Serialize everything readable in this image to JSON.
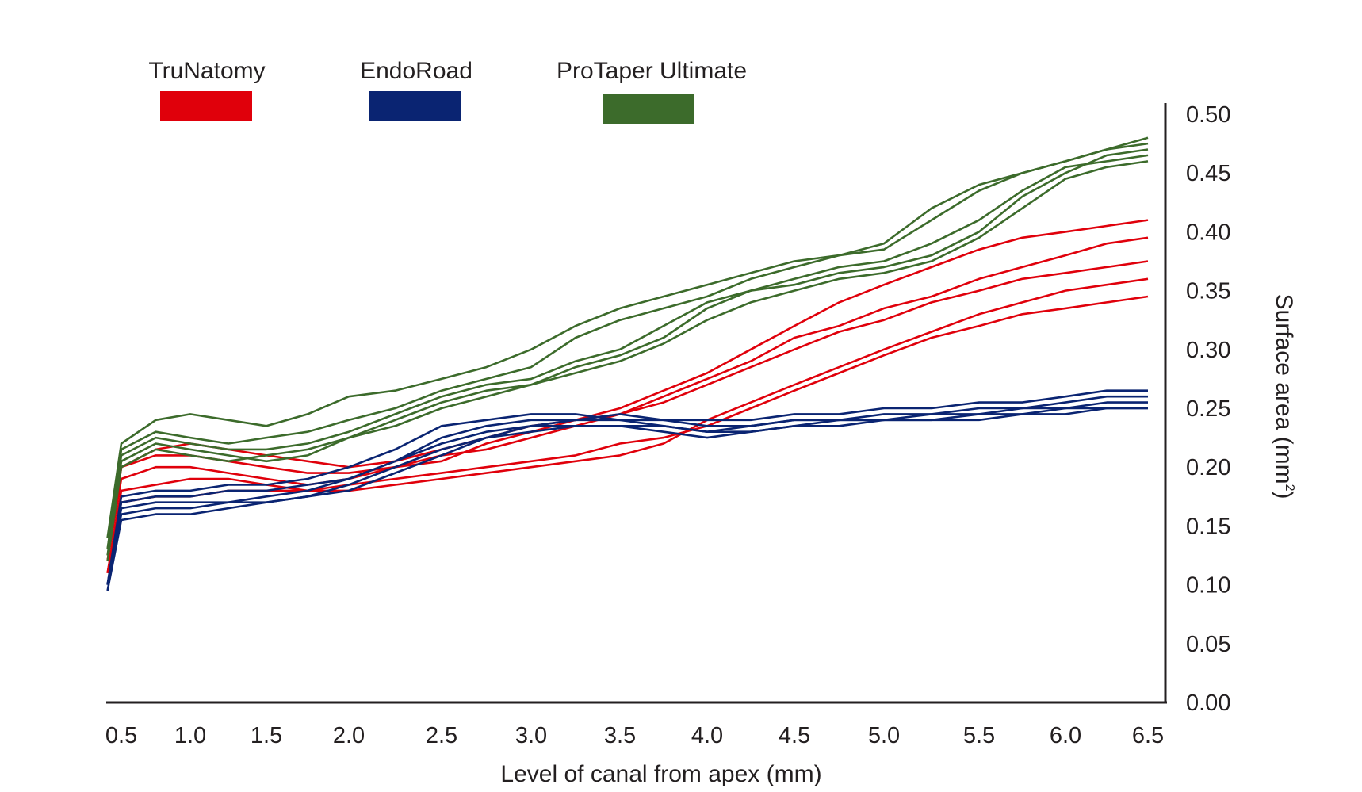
{
  "chart_data": {
    "type": "line",
    "title": "",
    "xlabel": "Level of canal from apex (mm)",
    "ylabel": "Surface area (mm",
    "ylabel_superscript": "2",
    "ylabel_close": ")",
    "xticks": [
      "0.5",
      "1.0",
      "1.5",
      "2.0",
      "2.5",
      "3.0",
      "3.5",
      "4.0",
      "4.5",
      "5.0",
      "5.5",
      "6.0",
      "6.5"
    ],
    "yticks": [
      "0.00",
      "0.05",
      "0.10",
      "0.15",
      "0.20",
      "0.25",
      "0.30",
      "0.35",
      "0.40",
      "0.45",
      "0.50"
    ],
    "xlim": [
      0.4,
      6.5
    ],
    "ylim": [
      0,
      0.5
    ],
    "y_axis_side": "right",
    "grid": false,
    "legend_placement": "top-left",
    "x": [
      0.4,
      0.5,
      0.75,
      1.0,
      1.25,
      1.5,
      1.75,
      2.0,
      2.25,
      2.5,
      2.75,
      3.0,
      3.25,
      3.5,
      3.75,
      4.0,
      4.25,
      4.5,
      4.75,
      5.0,
      5.25,
      5.5,
      5.75,
      6.0,
      6.25,
      6.5
    ],
    "groups": [
      {
        "name": "TruNatomy",
        "color": "#e0000b",
        "lines": [
          [
            0.12,
            0.2,
            0.215,
            0.22,
            0.215,
            0.21,
            0.205,
            0.2,
            0.205,
            0.215,
            0.225,
            0.235,
            0.24,
            0.25,
            0.265,
            0.28,
            0.3,
            0.32,
            0.34,
            0.355,
            0.37,
            0.385,
            0.395,
            0.4,
            0.405,
            0.41
          ],
          [
            0.11,
            0.18,
            0.185,
            0.19,
            0.19,
            0.185,
            0.18,
            0.18,
            0.185,
            0.19,
            0.195,
            0.2,
            0.205,
            0.21,
            0.22,
            0.24,
            0.255,
            0.27,
            0.285,
            0.3,
            0.315,
            0.33,
            0.34,
            0.35,
            0.355,
            0.36
          ],
          [
            0.12,
            0.19,
            0.2,
            0.2,
            0.195,
            0.19,
            0.185,
            0.19,
            0.2,
            0.21,
            0.215,
            0.225,
            0.235,
            0.245,
            0.26,
            0.275,
            0.29,
            0.31,
            0.32,
            0.335,
            0.345,
            0.36,
            0.37,
            0.38,
            0.39,
            0.395
          ],
          [
            0.11,
            0.17,
            0.175,
            0.175,
            0.18,
            0.18,
            0.18,
            0.185,
            0.19,
            0.195,
            0.2,
            0.205,
            0.21,
            0.22,
            0.225,
            0.235,
            0.25,
            0.265,
            0.28,
            0.295,
            0.31,
            0.32,
            0.33,
            0.335,
            0.34,
            0.345
          ],
          [
            0.12,
            0.2,
            0.21,
            0.21,
            0.205,
            0.2,
            0.195,
            0.195,
            0.2,
            0.205,
            0.22,
            0.23,
            0.24,
            0.245,
            0.255,
            0.27,
            0.285,
            0.3,
            0.315,
            0.325,
            0.34,
            0.35,
            0.36,
            0.365,
            0.37,
            0.375
          ]
        ]
      },
      {
        "name": "ProTaper Ultimate",
        "color": "#3c6b2b",
        "lines": [
          [
            0.14,
            0.22,
            0.24,
            0.245,
            0.24,
            0.235,
            0.245,
            0.26,
            0.265,
            0.275,
            0.285,
            0.3,
            0.32,
            0.335,
            0.345,
            0.355,
            0.365,
            0.375,
            0.38,
            0.39,
            0.42,
            0.44,
            0.45,
            0.46,
            0.47,
            0.48
          ],
          [
            0.13,
            0.21,
            0.225,
            0.22,
            0.215,
            0.215,
            0.22,
            0.23,
            0.245,
            0.26,
            0.27,
            0.275,
            0.29,
            0.3,
            0.32,
            0.34,
            0.35,
            0.36,
            0.37,
            0.375,
            0.39,
            0.41,
            0.435,
            0.455,
            0.46,
            0.465
          ],
          [
            0.12,
            0.2,
            0.215,
            0.21,
            0.205,
            0.21,
            0.215,
            0.225,
            0.24,
            0.255,
            0.265,
            0.27,
            0.285,
            0.295,
            0.31,
            0.335,
            0.35,
            0.355,
            0.365,
            0.37,
            0.38,
            0.4,
            0.43,
            0.45,
            0.465,
            0.47
          ],
          [
            0.13,
            0.215,
            0.23,
            0.225,
            0.22,
            0.225,
            0.23,
            0.24,
            0.25,
            0.265,
            0.275,
            0.285,
            0.31,
            0.325,
            0.335,
            0.345,
            0.36,
            0.37,
            0.38,
            0.385,
            0.41,
            0.435,
            0.45,
            0.46,
            0.47,
            0.475
          ],
          [
            0.125,
            0.205,
            0.22,
            0.215,
            0.21,
            0.205,
            0.21,
            0.225,
            0.235,
            0.25,
            0.26,
            0.27,
            0.28,
            0.29,
            0.305,
            0.325,
            0.34,
            0.35,
            0.36,
            0.365,
            0.375,
            0.395,
            0.42,
            0.445,
            0.455,
            0.46
          ]
        ]
      },
      {
        "name": "EndoRoad",
        "color": "#0a2472",
        "lines": [
          [
            0.1,
            0.17,
            0.175,
            0.175,
            0.18,
            0.18,
            0.185,
            0.19,
            0.205,
            0.225,
            0.235,
            0.24,
            0.24,
            0.245,
            0.24,
            0.235,
            0.235,
            0.24,
            0.24,
            0.245,
            0.245,
            0.25,
            0.25,
            0.255,
            0.26,
            0.26
          ],
          [
            0.1,
            0.16,
            0.165,
            0.165,
            0.17,
            0.17,
            0.175,
            0.185,
            0.2,
            0.215,
            0.225,
            0.23,
            0.235,
            0.235,
            0.23,
            0.225,
            0.23,
            0.235,
            0.24,
            0.24,
            0.24,
            0.245,
            0.245,
            0.25,
            0.25,
            0.25
          ],
          [
            0.1,
            0.175,
            0.18,
            0.18,
            0.185,
            0.185,
            0.19,
            0.2,
            0.215,
            0.235,
            0.24,
            0.245,
            0.245,
            0.24,
            0.24,
            0.24,
            0.24,
            0.245,
            0.245,
            0.25,
            0.25,
            0.255,
            0.255,
            0.26,
            0.265,
            0.265
          ],
          [
            0.1,
            0.165,
            0.17,
            0.17,
            0.17,
            0.175,
            0.18,
            0.19,
            0.205,
            0.22,
            0.23,
            0.235,
            0.24,
            0.24,
            0.235,
            0.23,
            0.235,
            0.24,
            0.24,
            0.24,
            0.245,
            0.245,
            0.25,
            0.25,
            0.255,
            0.255
          ],
          [
            0.095,
            0.155,
            0.16,
            0.16,
            0.165,
            0.17,
            0.175,
            0.18,
            0.195,
            0.21,
            0.225,
            0.235,
            0.235,
            0.235,
            0.235,
            0.23,
            0.23,
            0.235,
            0.235,
            0.24,
            0.24,
            0.24,
            0.245,
            0.245,
            0.25,
            0.25
          ]
        ]
      }
    ],
    "legend": [
      {
        "label": "TruNatomy",
        "color": "#e0000b"
      },
      {
        "label": "EndoRoad",
        "color": "#0a2472"
      },
      {
        "label": "ProTaper Ultimate",
        "color": "#3c6b2b"
      }
    ]
  }
}
